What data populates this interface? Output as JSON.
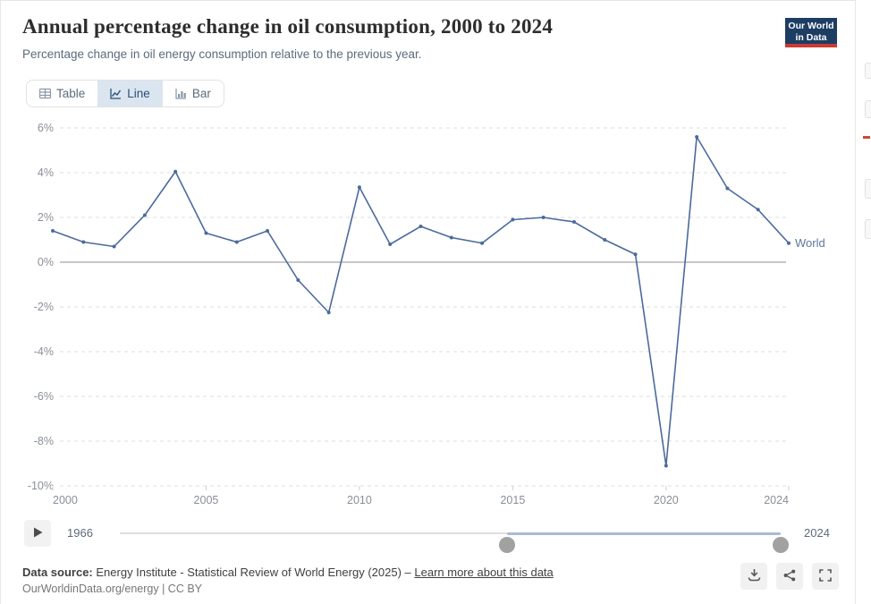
{
  "header": {
    "title": "Annual percentage change in oil consumption, 2000 to 2024",
    "subtitle": "Percentage change in oil energy consumption relative to the previous year.",
    "logo": {
      "line1": "Our World",
      "line2": "in Data"
    }
  },
  "tabs": [
    {
      "id": "table",
      "label": "Table",
      "active": false
    },
    {
      "id": "line",
      "label": "Line",
      "active": true
    },
    {
      "id": "bar",
      "label": "Bar",
      "active": false
    }
  ],
  "chart_data": {
    "type": "line",
    "title": "Annual percentage change in oil consumption, 2000 to 2024",
    "unit": "%",
    "x": [
      2000,
      2001,
      2002,
      2003,
      2004,
      2005,
      2006,
      2007,
      2008,
      2009,
      2010,
      2011,
      2012,
      2013,
      2014,
      2015,
      2016,
      2017,
      2018,
      2019,
      2020,
      2021,
      2022,
      2023,
      2024
    ],
    "series": [
      {
        "name": "World",
        "values": [
          1.4,
          0.9,
          0.7,
          2.1,
          4.05,
          1.3,
          0.9,
          1.4,
          -0.8,
          -2.25,
          3.35,
          0.8,
          1.6,
          1.1,
          0.85,
          1.9,
          2.0,
          1.8,
          1.0,
          0.35,
          -9.1,
          5.6,
          3.3,
          2.35,
          0.85
        ]
      }
    ],
    "ylim": [
      -10,
      6
    ],
    "yticks": [
      {
        "value": 6,
        "label": "6%"
      },
      {
        "value": 4,
        "label": "4%"
      },
      {
        "value": 2,
        "label": "2%"
      },
      {
        "value": 0,
        "label": "0%"
      },
      {
        "value": -2,
        "label": "-2%"
      },
      {
        "value": -4,
        "label": "-4%"
      },
      {
        "value": -6,
        "label": "-6%"
      },
      {
        "value": -8,
        "label": "-8%"
      },
      {
        "value": -10,
        "label": "-10%"
      }
    ],
    "xticks": [
      {
        "value": 2000,
        "label": "2000"
      },
      {
        "value": 2005,
        "label": "2005"
      },
      {
        "value": 2010,
        "label": "2010"
      },
      {
        "value": 2015,
        "label": "2015"
      },
      {
        "value": 2020,
        "label": "2020"
      },
      {
        "value": 2024,
        "label": "2024"
      }
    ],
    "grid": "horizontal-dashed",
    "legend_position": "end-of-line",
    "line_color": "#4c6a9c",
    "entity_label_color": "#5d7899",
    "tick_label_color": "#8a8f98"
  },
  "timeline": {
    "start_label": "1966",
    "end_label": "2024",
    "range_start_year": 1966,
    "range_end_year": 2024,
    "selected_start_year": 2000,
    "selected_end_year": 2024
  },
  "footer": {
    "source_prefix": "Data source:",
    "source_text": "Energy Institute - Statistical Review of World Energy (2025)",
    "separator": "–",
    "learn_more": "Learn more about this data",
    "attribution": "OurWorldinData.org/energy | CC BY"
  },
  "actions": [
    {
      "name": "download"
    },
    {
      "name": "share"
    },
    {
      "name": "enter-fullscreen"
    }
  ],
  "colors": {
    "accent_line": "#4c6a9c",
    "logo_bg": "#1d3d63",
    "logo_accent": "#cc3b33",
    "active_tab_bg": "#dbe5f0",
    "zero_line": "#b6b6b6",
    "gridline": "#dedede"
  }
}
